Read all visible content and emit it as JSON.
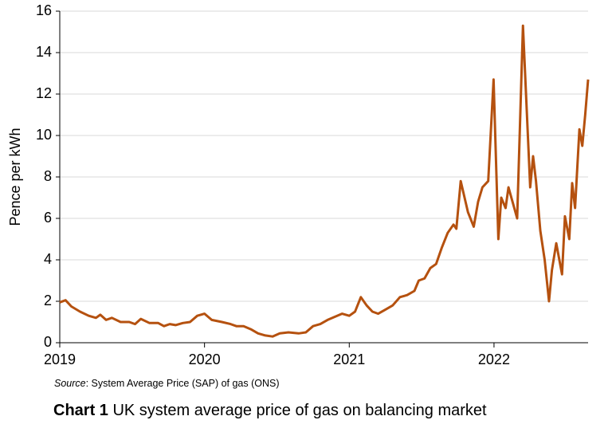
{
  "chart_data": {
    "type": "line",
    "title_label": "Chart 1",
    "title": "UK system average price of gas on balancing market",
    "source_label": "Source",
    "source_text": ": System Average Price (SAP) of gas (ONS)",
    "y_label": "Pence per kWh",
    "x": [
      2019.0,
      2019.04,
      2019.08,
      2019.14,
      2019.2,
      2019.25,
      2019.28,
      2019.32,
      2019.36,
      2019.42,
      2019.48,
      2019.52,
      2019.56,
      2019.62,
      2019.68,
      2019.72,
      2019.76,
      2019.8,
      2019.85,
      2019.9,
      2019.95,
      2020.0,
      2020.05,
      2020.12,
      2020.18,
      2020.22,
      2020.27,
      2020.32,
      2020.37,
      2020.42,
      2020.47,
      2020.52,
      2020.58,
      2020.65,
      2020.7,
      2020.75,
      2020.8,
      2020.85,
      2020.9,
      2020.95,
      2021.0,
      2021.04,
      2021.08,
      2021.12,
      2021.16,
      2021.2,
      2021.25,
      2021.3,
      2021.35,
      2021.4,
      2021.45,
      2021.48,
      2021.52,
      2021.56,
      2021.6,
      2021.64,
      2021.68,
      2021.72,
      2021.74,
      2021.77,
      2021.79,
      2021.82,
      2021.86,
      2021.89,
      2021.92,
      2021.96,
      2021.997,
      2022.03,
      2022.05,
      2022.08,
      2022.1,
      2022.16,
      2022.2,
      2022.25,
      2022.27,
      2022.29,
      2022.32,
      2022.35,
      2022.38,
      2022.4,
      2022.43,
      2022.47,
      2022.49,
      2022.52,
      2022.54,
      2022.56,
      2022.59,
      2022.61,
      2022.63,
      2022.65
    ],
    "series": [
      {
        "name": "SAP",
        "color": "#b5510f",
        "values": [
          1.95,
          2.05,
          1.75,
          1.5,
          1.3,
          1.2,
          1.35,
          1.1,
          1.2,
          1.0,
          1.0,
          0.9,
          1.15,
          0.95,
          0.95,
          0.8,
          0.9,
          0.85,
          0.95,
          1.0,
          1.3,
          1.4,
          1.1,
          1.0,
          0.9,
          0.8,
          0.8,
          0.65,
          0.45,
          0.35,
          0.3,
          0.45,
          0.5,
          0.45,
          0.5,
          0.8,
          0.9,
          1.1,
          1.25,
          1.4,
          1.3,
          1.5,
          2.2,
          1.8,
          1.5,
          1.4,
          1.6,
          1.8,
          2.2,
          2.3,
          2.5,
          3.0,
          3.1,
          3.6,
          3.8,
          4.6,
          5.3,
          5.7,
          5.5,
          7.8,
          7.2,
          6.3,
          5.6,
          6.8,
          7.5,
          7.8,
          12.7,
          5.0,
          7.0,
          6.5,
          7.5,
          6.0,
          15.3,
          7.5,
          9.0,
          7.8,
          5.4,
          4.0,
          2.0,
          3.5,
          4.8,
          3.3,
          6.1,
          5.0,
          7.7,
          6.5,
          10.3,
          9.5,
          11.0,
          12.7
        ]
      }
    ],
    "xlim": [
      2019.0,
      2022.65
    ],
    "xticks": [
      2019,
      2020,
      2021,
      2022
    ],
    "ylim": [
      0,
      16
    ],
    "yticks": [
      0,
      2,
      4,
      6,
      8,
      10,
      12,
      14,
      16
    ],
    "grid": true
  }
}
